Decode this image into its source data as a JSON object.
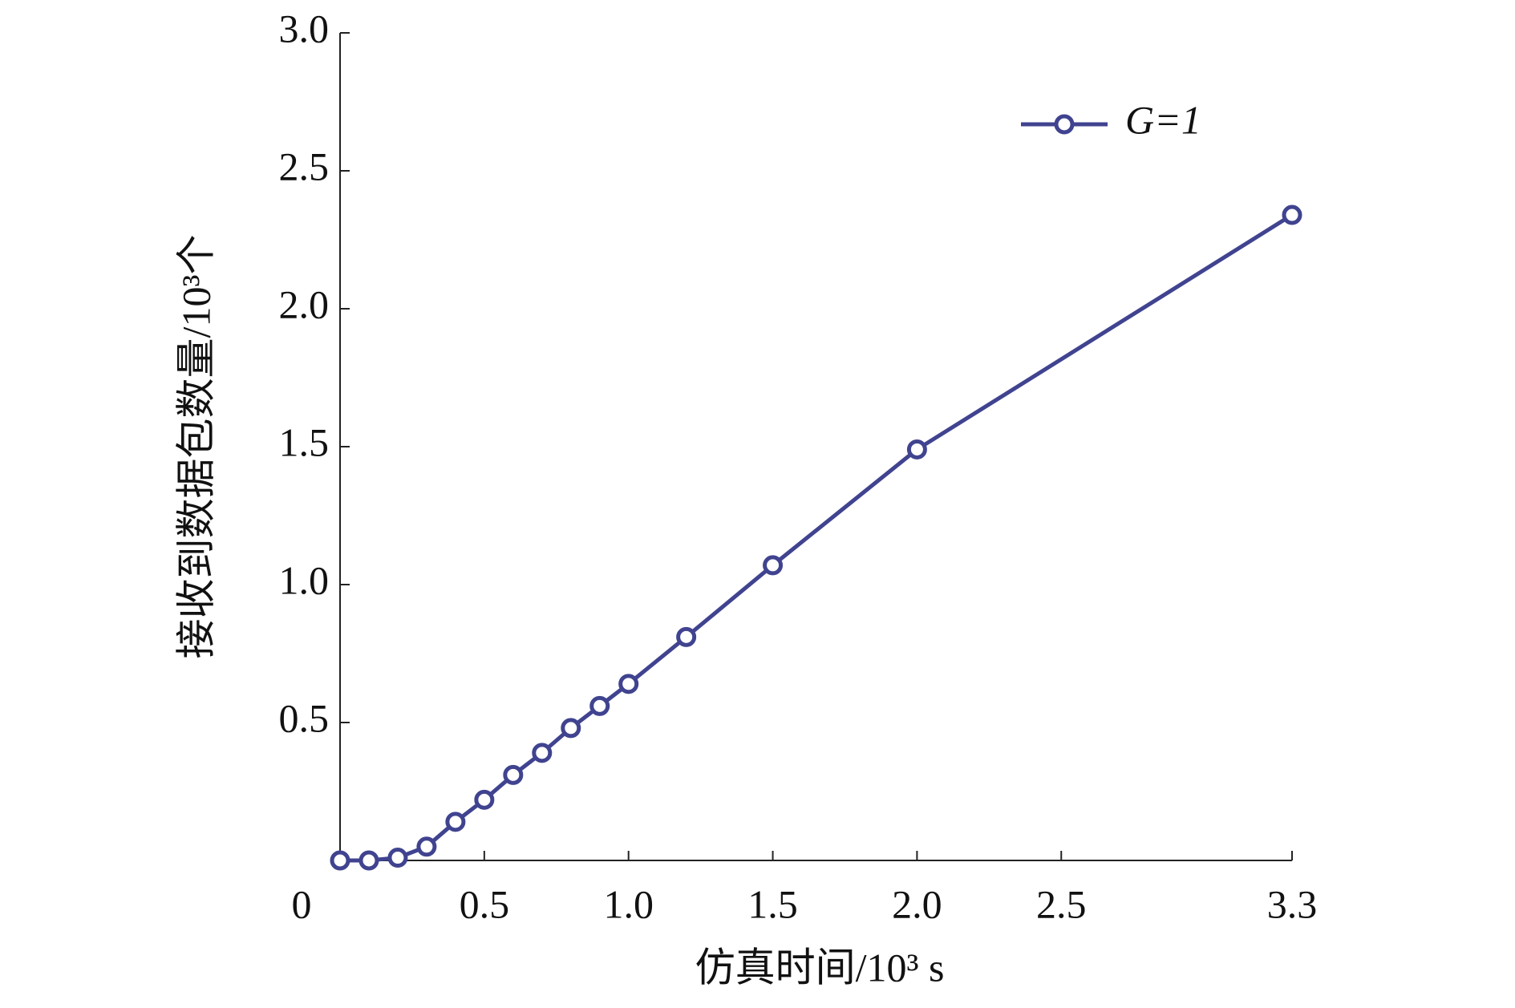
{
  "chart_data": {
    "type": "line",
    "x_label": "仿真时间/10³ s",
    "y_label": "接收到数据包数量/10³个",
    "x": [
      0,
      0.1,
      0.2,
      0.3,
      0.4,
      0.5,
      0.6,
      0.7,
      0.8,
      0.9,
      1.0,
      1.2,
      1.5,
      2.0,
      3.3
    ],
    "series": [
      {
        "name": "G=1",
        "color": "#40438f",
        "values": [
          0,
          0,
          0.01,
          0.05,
          0.14,
          0.22,
          0.31,
          0.39,
          0.48,
          0.56,
          0.64,
          0.81,
          1.07,
          1.49,
          2.34
        ]
      }
    ],
    "xlim": [
      0,
      3.3
    ],
    "xticks": [
      0,
      0.5,
      {
        "value": 1,
        "label": "1.0"
      },
      1.5,
      {
        "value": 2,
        "label": "2.0"
      },
      2.5,
      3.3
    ],
    "ylim": [
      0,
      3
    ],
    "yticks": [
      0.5,
      {
        "value": 1,
        "label": "1.0"
      },
      1.5,
      {
        "value": 2,
        "label": "2.0"
      },
      2.5,
      {
        "value": 3,
        "label": "3.0"
      }
    ],
    "grid": false,
    "legend": "upper right"
  }
}
